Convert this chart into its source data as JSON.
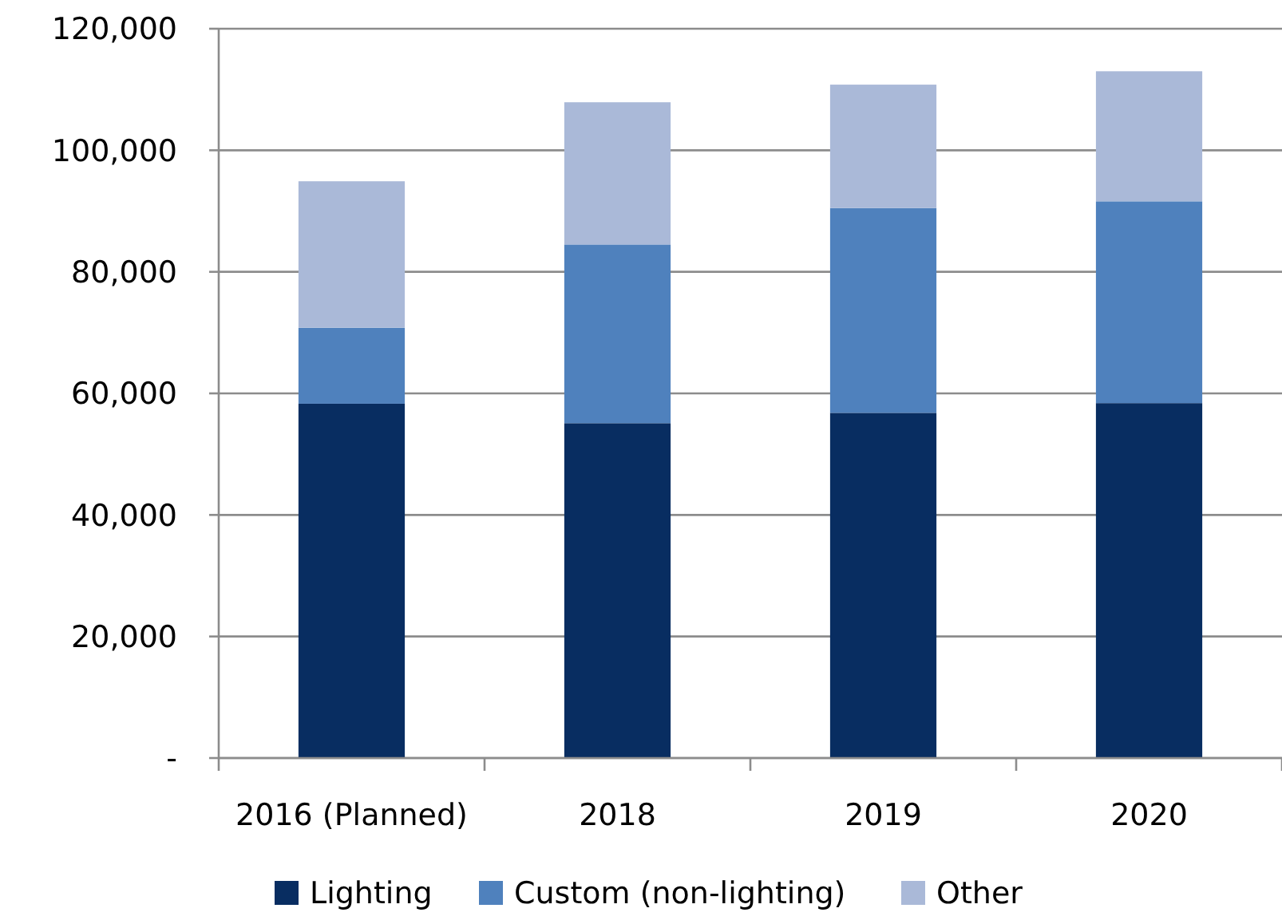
{
  "chart_data": {
    "type": "bar",
    "stacked": true,
    "categories": [
      "2016 (Planned)",
      "2018",
      "2019",
      "2020"
    ],
    "series": [
      {
        "name": "Lighting",
        "color": "#082d61",
        "values": [
          58300,
          55100,
          56800,
          58400
        ]
      },
      {
        "name": "Custom (non-lighting)",
        "color": "#4f81bd",
        "values": [
          12500,
          29400,
          33700,
          33200
        ]
      },
      {
        "name": "Other",
        "color": "#aab9d8",
        "values": [
          24100,
          23400,
          20300,
          21400
        ]
      }
    ],
    "ylim": [
      0,
      120000
    ],
    "yticks": [
      {
        "value": 0,
        "label": "-"
      },
      {
        "value": 20000,
        "label": "20,000"
      },
      {
        "value": 40000,
        "label": "40,000"
      },
      {
        "value": 60000,
        "label": "60,000"
      },
      {
        "value": 80000,
        "label": "80,000"
      },
      {
        "value": 100000,
        "label": "100,000"
      },
      {
        "value": 120000,
        "label": "120,000"
      }
    ],
    "grid": "y",
    "legend": "bottom"
  }
}
